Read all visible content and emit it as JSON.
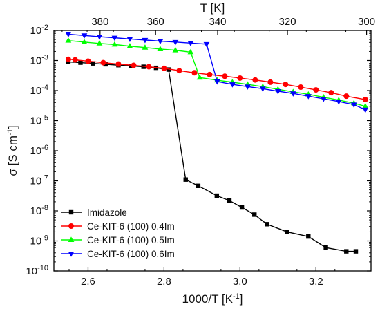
{
  "chart_data": {
    "type": "line",
    "xlabel": "1000/T [K",
    "xlabel_sup": "-1",
    "xlabel_tail": "]",
    "ylabel": "σ [S cm",
    "ylabel_sup": "-1",
    "ylabel_tail": "]",
    "top_xlabel": "T [K]",
    "xlim": [
      2.51,
      3.345
    ],
    "ylog_exp_range": [
      -10,
      -2
    ],
    "x_ticks": [
      {
        "v": 2.6,
        "label": "2.6"
      },
      {
        "v": 2.8,
        "label": "2.8"
      },
      {
        "v": 3.0,
        "label": "3.0"
      },
      {
        "v": 3.2,
        "label": "3.2"
      }
    ],
    "top_ticks": [
      {
        "label": "380",
        "kelvin": 380
      },
      {
        "label": "360",
        "kelvin": 360
      },
      {
        "label": "340",
        "kelvin": 340
      },
      {
        "label": "320",
        "kelvin": 320
      },
      {
        "label": "300",
        "kelvin": 300
      }
    ],
    "y_ticks": [
      {
        "exp": -10,
        "base": "10",
        "sup": "-10"
      },
      {
        "exp": -9,
        "base": "10",
        "sup": "-9"
      },
      {
        "exp": -8,
        "base": "10",
        "sup": "-8"
      },
      {
        "exp": -7,
        "base": "10",
        "sup": "-7"
      },
      {
        "exp": -6,
        "base": "10",
        "sup": "-6"
      },
      {
        "exp": -5,
        "base": "10",
        "sup": "-5"
      },
      {
        "exp": -4,
        "base": "10",
        "sup": "-4"
      },
      {
        "exp": -3,
        "base": "10",
        "sup": "-3"
      },
      {
        "exp": -2,
        "base": "10",
        "sup": "-2"
      }
    ],
    "grid": false,
    "legend_position": "bottom-left",
    "series": [
      {
        "name": "Imidazole",
        "color": "#000000",
        "marker": "square",
        "x": [
          2.548,
          2.58,
          2.613,
          2.646,
          2.68,
          2.713,
          2.746,
          2.779,
          2.812,
          2.857,
          2.89,
          2.939,
          2.972,
          3.005,
          3.038,
          3.071,
          3.124,
          3.18,
          3.226,
          3.28,
          3.305
        ],
        "y": [
          0.0009,
          0.00085,
          0.0008,
          0.00075,
          0.0007,
          0.00066,
          0.00062,
          0.00057,
          0.0005,
          1.1e-07,
          6.8e-08,
          3.2e-08,
          2.2e-08,
          1.3e-08,
          7.5e-09,
          3.6e-09,
          2e-09,
          1.4e-09,
          6e-10,
          4.5e-10,
          4.5e-10
        ]
      },
      {
        "name": "Ce-KIT-6 (100) 0.4Im",
        "color": "#ff0000",
        "marker": "circle",
        "x": [
          2.548,
          2.566,
          2.6,
          2.64,
          2.68,
          2.72,
          2.76,
          2.8,
          2.84,
          2.88,
          2.92,
          2.96,
          3.0,
          3.04,
          3.08,
          3.12,
          3.16,
          3.2,
          3.24,
          3.28,
          3.33
        ],
        "y": [
          0.0011,
          0.00105,
          0.00095,
          0.00085,
          0.00076,
          0.00069,
          0.00062,
          0.00055,
          0.00046,
          0.00039,
          0.00034,
          0.0003,
          0.00026,
          0.000225,
          0.00019,
          0.00016,
          0.00013,
          0.000105,
          8.5e-05,
          6.5e-05,
          5e-05
        ]
      },
      {
        "name": "Ce-KIT-6 (100) 0.5Im",
        "color": "#00ff00",
        "marker": "triangle-up",
        "x": [
          2.548,
          2.59,
          2.63,
          2.67,
          2.71,
          2.75,
          2.79,
          2.83,
          2.87,
          2.894,
          2.94,
          2.98,
          3.02,
          3.06,
          3.1,
          3.14,
          3.18,
          3.22,
          3.26,
          3.3,
          3.33
        ],
        "y": [
          0.0046,
          0.0041,
          0.0037,
          0.0034,
          0.003,
          0.0027,
          0.0024,
          0.0022,
          0.0019,
          0.00027,
          0.00022,
          0.00019,
          0.00016,
          0.000135,
          0.00011,
          9e-05,
          7.5e-05,
          6e-05,
          4.8e-05,
          3.8e-05,
          3e-05
        ]
      },
      {
        "name": "Ce-KIT-6 (100) 0.6Im",
        "color": "#0000ff",
        "marker": "triangle-down",
        "x": [
          2.548,
          2.59,
          2.63,
          2.67,
          2.71,
          2.75,
          2.79,
          2.83,
          2.87,
          2.912,
          2.94,
          2.98,
          3.02,
          3.06,
          3.1,
          3.14,
          3.18,
          3.22,
          3.26,
          3.3,
          3.33
        ],
        "y": [
          0.0075,
          0.0068,
          0.0062,
          0.0057,
          0.0052,
          0.0048,
          0.0044,
          0.0041,
          0.0038,
          0.0035,
          0.0002,
          0.00016,
          0.000135,
          0.000115,
          9.5e-05,
          8e-05,
          6.5e-05,
          5.3e-05,
          4.3e-05,
          3.4e-05,
          2.3e-05
        ]
      }
    ]
  }
}
